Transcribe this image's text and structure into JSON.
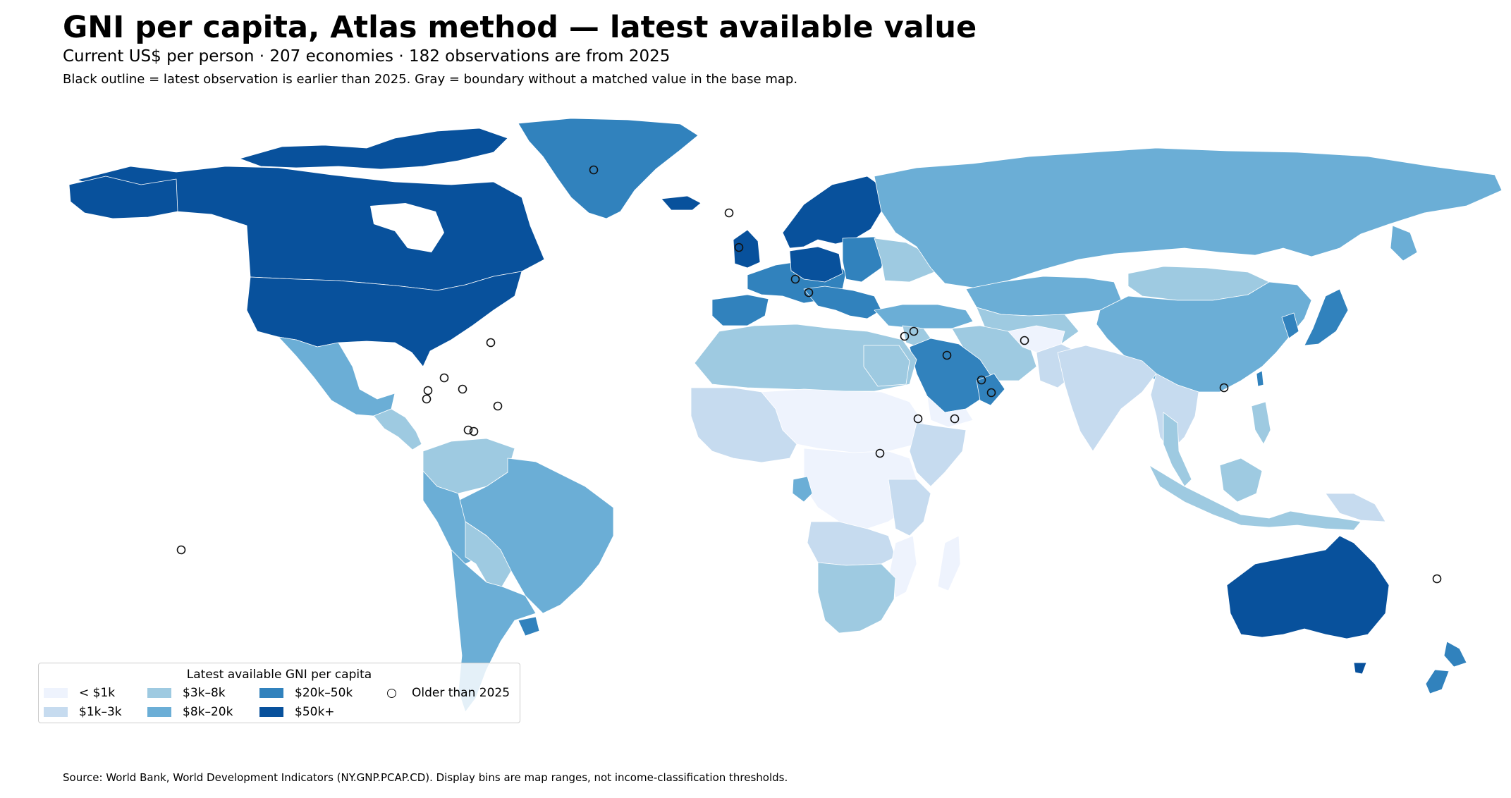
{
  "title": "GNI per capita, Atlas method — latest available value",
  "subtitle": "Current US$ per person · 207 economies · 182 observations are from 2025",
  "note": "Black outline = latest observation is earlier than 2025. Gray = boundary without a matched value in the base map.",
  "source": "Source: World Bank, World Development Indicators (NY.GNP.PCAP.CD). Display bins are map ranges, not income-classification thresholds.",
  "colors": {
    "lt1k": "#eef3fd",
    "b1k3k": "#c6dbef",
    "b3k8k": "#9ecae1",
    "b8k20k": "#6baed6",
    "b20k50k": "#3182bd",
    "gt50k": "#08519c",
    "nomatch": "#e8e8e8",
    "outline": "#111111"
  },
  "legend": {
    "title": "Latest available GNI per capita",
    "items": [
      {
        "label": "< $1k",
        "color": "#eef3fd"
      },
      {
        "label": "$1k–3k",
        "color": "#c6dbef"
      },
      {
        "label": "$3k–8k",
        "color": "#9ecae1"
      },
      {
        "label": "$8k–20k",
        "color": "#6baed6"
      },
      {
        "label": "$20k–50k",
        "color": "#3182bd"
      },
      {
        "label": "$50k+",
        "color": "#08519c"
      }
    ],
    "older_label": "Older than 2025"
  }
}
